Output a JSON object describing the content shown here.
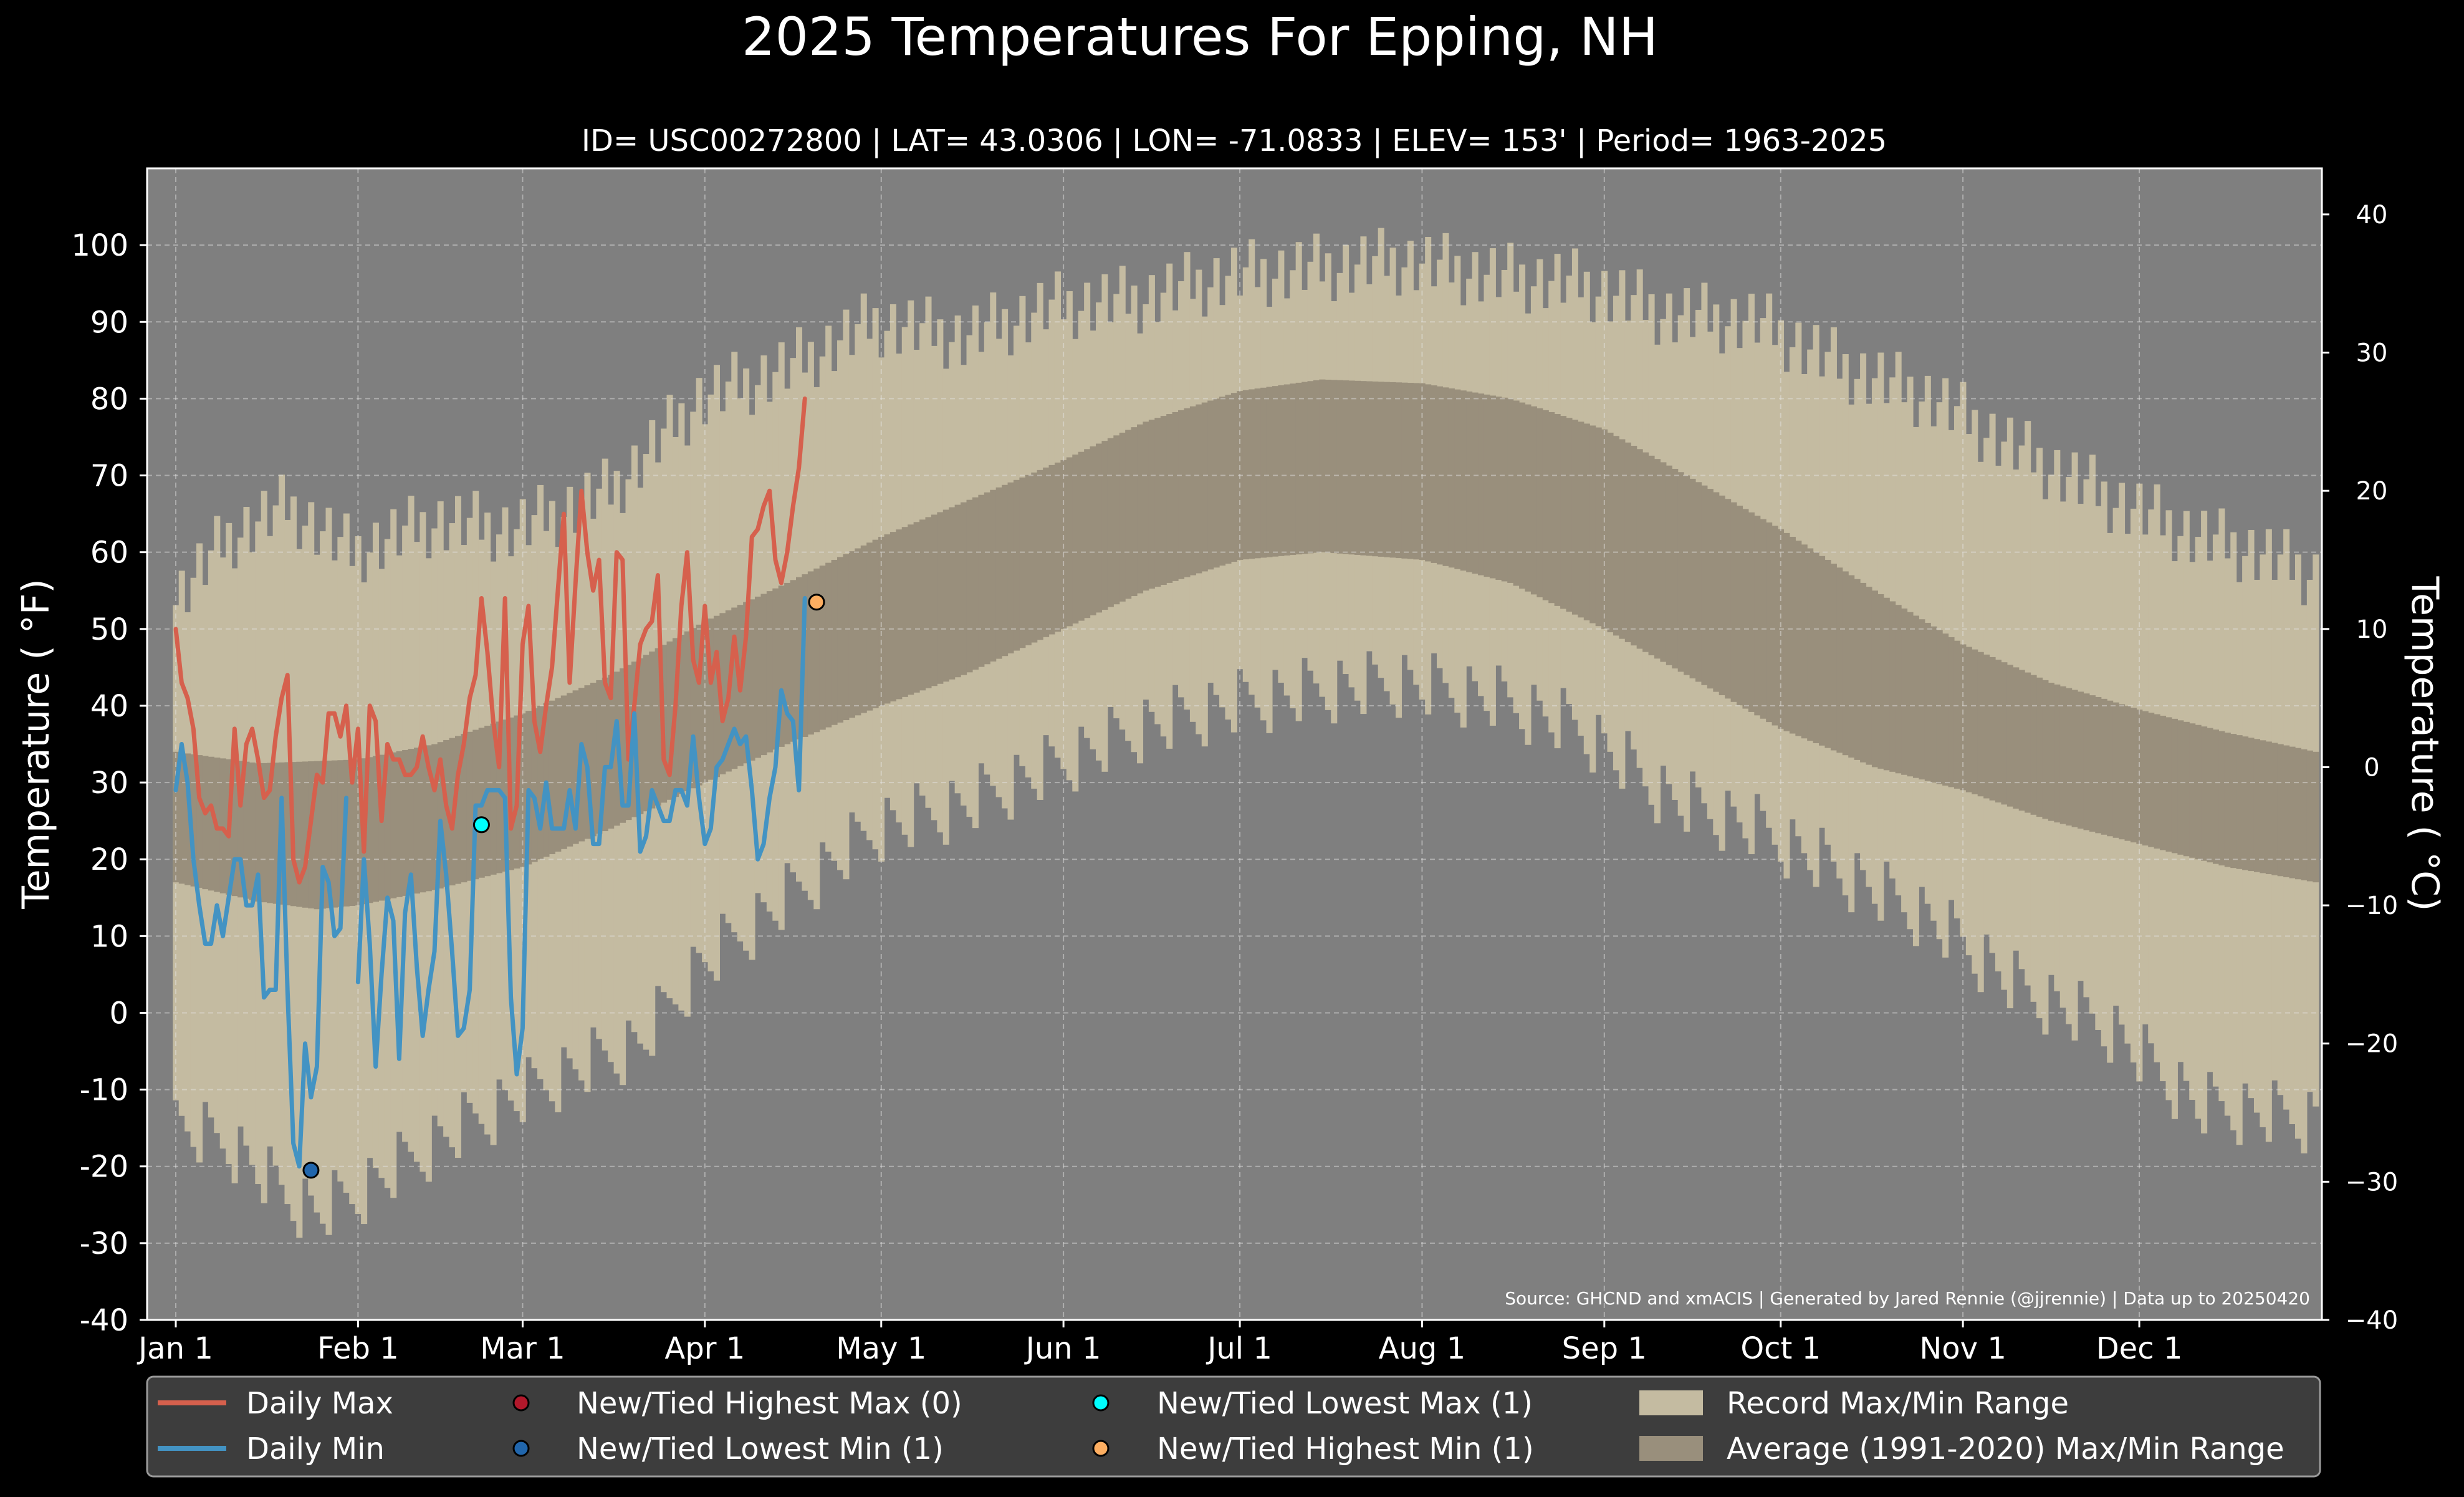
{
  "chart_data": {
    "type": "line",
    "title": "2025 Temperatures For Epping, NH",
    "subtitle": "ID= USC00272800 | LAT= 43.0306 | LON= -71.0833 | ELEV= 153' | Period= 1963-2025",
    "ylabel": "Temperature ( $^\\circ$F)",
    "ylabel_display": "Temperature ( °F)",
    "ylabel_right": "Temperature ( °C)",
    "ylim": [
      -40,
      110
    ],
    "ylim_right_c": [
      -40,
      43.3
    ],
    "yticks": [
      -40,
      -30,
      -20,
      -10,
      0,
      10,
      20,
      30,
      40,
      50,
      60,
      70,
      80,
      90,
      100
    ],
    "yticks_right": [
      -40,
      -30,
      -20,
      -10,
      0,
      10,
      20,
      30,
      40
    ],
    "xticks": [
      {
        "label": "Jan 1",
        "day": 1
      },
      {
        "label": "Feb 1",
        "day": 32
      },
      {
        "label": "Mar 1",
        "day": 60
      },
      {
        "label": "Apr 1",
        "day": 91
      },
      {
        "label": "May 1",
        "day": 121
      },
      {
        "label": "Jun 1",
        "day": 152
      },
      {
        "label": "Jul 1",
        "day": 182
      },
      {
        "label": "Aug 1",
        "day": 213
      },
      {
        "label": "Sep 1",
        "day": 244
      },
      {
        "label": "Oct 1",
        "day": 274
      },
      {
        "label": "Nov 1",
        "day": 305
      },
      {
        "label": "Dec 1",
        "day": 335
      }
    ],
    "days_in_year": 365,
    "grid": true,
    "source": "Source: GHCND and xmACIS | Generated by Jared Rennie (@jjrennie) | Data up to 20250420",
    "record_max_anchors": [
      [
        1,
        54
      ],
      [
        10,
        62
      ],
      [
        20,
        66
      ],
      [
        31,
        60
      ],
      [
        45,
        64
      ],
      [
        59,
        63
      ],
      [
        75,
        68
      ],
      [
        90,
        80
      ],
      [
        105,
        84
      ],
      [
        120,
        90
      ],
      [
        135,
        88
      ],
      [
        150,
        92
      ],
      [
        165,
        93
      ],
      [
        180,
        96
      ],
      [
        195,
        97
      ],
      [
        210,
        98
      ],
      [
        225,
        96
      ],
      [
        240,
        95
      ],
      [
        255,
        91
      ],
      [
        270,
        90
      ],
      [
        285,
        84
      ],
      [
        300,
        80
      ],
      [
        315,
        73
      ],
      [
        330,
        67
      ],
      [
        345,
        62
      ],
      [
        355,
        60
      ],
      [
        365,
        57
      ]
    ],
    "record_min_anchors": [
      [
        1,
        -15
      ],
      [
        10,
        -17
      ],
      [
        20,
        -24
      ],
      [
        25,
        -26
      ],
      [
        31,
        -24
      ],
      [
        45,
        -17
      ],
      [
        59,
        -11
      ],
      [
        70,
        -7
      ],
      [
        80,
        -4
      ],
      [
        90,
        6
      ],
      [
        105,
        15
      ],
      [
        120,
        24
      ],
      [
        135,
        27
      ],
      [
        150,
        32
      ],
      [
        165,
        37
      ],
      [
        180,
        40
      ],
      [
        195,
        42
      ],
      [
        210,
        43
      ],
      [
        225,
        41
      ],
      [
        240,
        37
      ],
      [
        255,
        28
      ],
      [
        270,
        24
      ],
      [
        285,
        18
      ],
      [
        300,
        12
      ],
      [
        315,
        3
      ],
      [
        330,
        -2
      ],
      [
        345,
        -12
      ],
      [
        355,
        -13
      ],
      [
        365,
        -14
      ]
    ],
    "avg_max_anchors": [
      [
        1,
        34
      ],
      [
        15,
        32.5
      ],
      [
        32,
        33
      ],
      [
        45,
        35
      ],
      [
        60,
        39
      ],
      [
        75,
        44
      ],
      [
        91,
        51
      ],
      [
        105,
        56
      ],
      [
        121,
        62
      ],
      [
        135,
        66.5
      ],
      [
        152,
        72
      ],
      [
        166,
        77
      ],
      [
        182,
        81
      ],
      [
        196,
        82.5
      ],
      [
        213,
        82
      ],
      [
        228,
        80
      ],
      [
        244,
        76
      ],
      [
        258,
        70
      ],
      [
        274,
        63
      ],
      [
        290,
        55
      ],
      [
        305,
        48
      ],
      [
        320,
        43
      ],
      [
        335,
        39.5
      ],
      [
        350,
        36.5
      ],
      [
        365,
        34
      ]
    ],
    "avg_min_anchors": [
      [
        1,
        17
      ],
      [
        15,
        14.5
      ],
      [
        25,
        13.5
      ],
      [
        32,
        14
      ],
      [
        45,
        16
      ],
      [
        60,
        19
      ],
      [
        75,
        24
      ],
      [
        91,
        30
      ],
      [
        105,
        35
      ],
      [
        121,
        40
      ],
      [
        135,
        44
      ],
      [
        152,
        50
      ],
      [
        166,
        55
      ],
      [
        182,
        59
      ],
      [
        196,
        60
      ],
      [
        213,
        59
      ],
      [
        228,
        56
      ],
      [
        244,
        50
      ],
      [
        258,
        44
      ],
      [
        274,
        37
      ],
      [
        290,
        32
      ],
      [
        305,
        29
      ],
      [
        320,
        25
      ],
      [
        335,
        22
      ],
      [
        350,
        19
      ],
      [
        365,
        17
      ]
    ],
    "series": [
      {
        "name": "Daily Max",
        "color": "#d6604d",
        "x": [
          1,
          2,
          3,
          4,
          5,
          6,
          7,
          8,
          9,
          10,
          11,
          12,
          13,
          14,
          15,
          16,
          17,
          18,
          19,
          20,
          21,
          22,
          23,
          24,
          25,
          26,
          27,
          28,
          29,
          30,
          31,
          32,
          33,
          34,
          35,
          36,
          37,
          38,
          39,
          40,
          41,
          42,
          43,
          44,
          45,
          46,
          47,
          48,
          49,
          50,
          51,
          52,
          53,
          54,
          55,
          56,
          57,
          58,
          59,
          60,
          61,
          62,
          63,
          64,
          65,
          66,
          67,
          68,
          69,
          70,
          71,
          72,
          73,
          74,
          75,
          76,
          77,
          78,
          79,
          80,
          81,
          82,
          83,
          84,
          85,
          86,
          87,
          88,
          89,
          90,
          91,
          92,
          93,
          94,
          95,
          96,
          97,
          98,
          99,
          100,
          101,
          102,
          103,
          104,
          105,
          106,
          107,
          108,
          109,
          110
        ],
        "values": [
          50,
          43,
          41,
          37,
          28,
          26,
          27,
          24,
          24,
          23,
          37,
          27,
          35,
          37,
          33,
          28,
          29,
          36,
          41,
          44,
          20,
          17,
          19,
          25,
          31,
          30,
          39,
          39,
          36,
          40,
          30,
          37,
          21,
          40,
          38,
          25,
          35,
          33,
          33,
          31,
          31,
          32,
          36,
          32,
          29,
          33,
          27,
          24,
          31,
          35,
          41,
          44,
          54,
          47,
          38,
          32,
          54,
          24,
          27,
          48,
          53,
          38,
          34,
          40,
          45,
          55,
          65,
          43,
          56,
          68,
          60,
          55,
          59,
          43,
          41,
          60,
          59,
          33,
          40,
          48,
          50,
          51,
          57,
          33,
          31,
          40,
          53,
          60,
          46,
          43,
          53,
          43,
          47,
          38,
          41,
          49,
          42,
          49,
          62,
          63,
          66,
          68,
          59,
          56,
          60,
          66,
          71,
          80,
          null,
          null
        ]
      },
      {
        "name": "Daily Min",
        "color": "#4393c3",
        "x": [
          1,
          2,
          3,
          4,
          5,
          6,
          7,
          8,
          9,
          10,
          11,
          12,
          13,
          14,
          15,
          16,
          17,
          18,
          19,
          20,
          21,
          22,
          23,
          24,
          25,
          26,
          27,
          28,
          29,
          30,
          31,
          32,
          33,
          34,
          35,
          36,
          37,
          38,
          39,
          40,
          41,
          42,
          43,
          44,
          45,
          46,
          47,
          48,
          49,
          50,
          51,
          52,
          53,
          54,
          55,
          56,
          57,
          58,
          59,
          60,
          61,
          62,
          63,
          64,
          65,
          66,
          67,
          68,
          69,
          70,
          71,
          72,
          73,
          74,
          75,
          76,
          77,
          78,
          79,
          80,
          81,
          82,
          83,
          84,
          85,
          86,
          87,
          88,
          89,
          90,
          91,
          92,
          93,
          94,
          95,
          96,
          97,
          98,
          99,
          100,
          101,
          102,
          103,
          104,
          105,
          106,
          107,
          108,
          109,
          110
        ],
        "values": [
          29,
          35,
          30,
          20,
          14,
          9,
          9,
          14,
          10,
          15,
          20,
          20,
          14,
          14,
          18,
          2,
          3,
          3,
          28,
          3,
          -17,
          -20,
          -4,
          -11,
          -7,
          19,
          17,
          10,
          11,
          28,
          null,
          4,
          20,
          9,
          -7,
          5,
          15,
          12,
          -6,
          13,
          18,
          6,
          -3,
          3,
          8,
          25,
          18,
          8,
          -3,
          -2,
          3,
          27,
          27,
          29,
          29,
          29,
          28,
          2,
          -8,
          -2,
          29,
          28,
          24,
          30,
          24,
          24,
          24,
          29,
          24,
          35,
          32,
          22,
          22,
          32,
          32,
          38,
          27,
          27,
          39,
          21,
          23,
          29,
          27,
          25,
          25,
          29,
          29,
          27,
          36,
          28,
          22,
          24,
          32,
          33,
          35,
          37,
          35,
          36,
          29,
          20,
          22,
          28,
          32,
          42,
          39,
          38,
          29,
          54,
          null,
          null
        ]
      }
    ],
    "new_tied_markers": [
      {
        "name": "New/Tied Highest Max (0)",
        "color": "#b2182b",
        "points": []
      },
      {
        "name": "New/Tied Lowest Min (1)",
        "color": "#2166ac",
        "points": [
          [
            24,
            -20.5
          ]
        ]
      },
      {
        "name": "New/Tied Lowest Max (1)",
        "color": "#00ffff",
        "points": [
          [
            53,
            24.5
          ]
        ]
      },
      {
        "name": "New/Tied Highest Min (1)",
        "color": "#fdae61",
        "points": [
          [
            110,
            53.5
          ]
        ]
      }
    ],
    "bands": [
      {
        "name": "Record Max/Min Range",
        "color": "#c4bba1"
      },
      {
        "name": "Average (1991-2020) Max/Min Range",
        "color": "#998f7c"
      }
    ],
    "legend_placement": "bottom",
    "colors": {
      "background": "#000000",
      "plot_background": "#7f7f7f",
      "record_band": "#c4bba1",
      "avg_band": "#998f7c",
      "daily_max": "#d6604d",
      "daily_min": "#4393c3",
      "legend_bg": "#3d3d3d",
      "text": "#ffffff"
    }
  }
}
